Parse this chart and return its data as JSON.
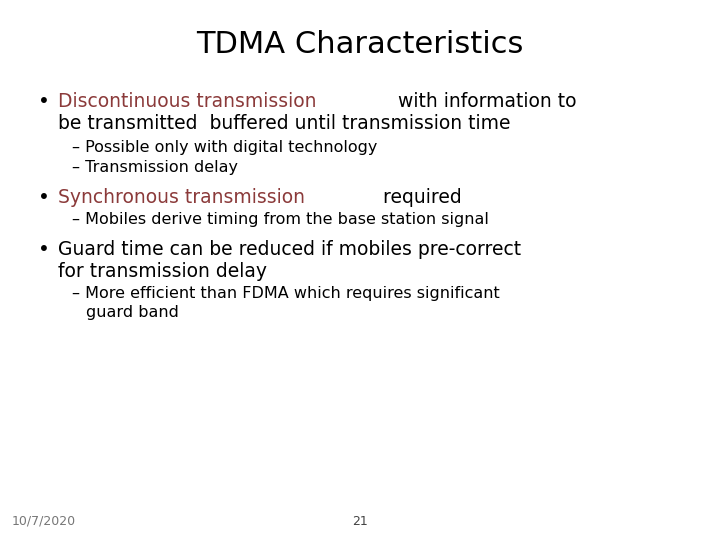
{
  "title": "TDMA Characteristics",
  "title_fontsize": 22,
  "title_color": "#000000",
  "background_color": "#ffffff",
  "bullet_color": "#000000",
  "highlight_color": "#8B3A3A",
  "sub1a": "Possible only with digital technology",
  "sub1b": "Transmission delay",
  "sub2a": "Mobiles derive timing from the base station signal",
  "footer_left": "10/7/2020",
  "footer_center": "21",
  "main_fontsize": 13.5,
  "sub_fontsize": 11.5,
  "footer_fontsize": 9,
  "font_family": "DejaVu Sans"
}
